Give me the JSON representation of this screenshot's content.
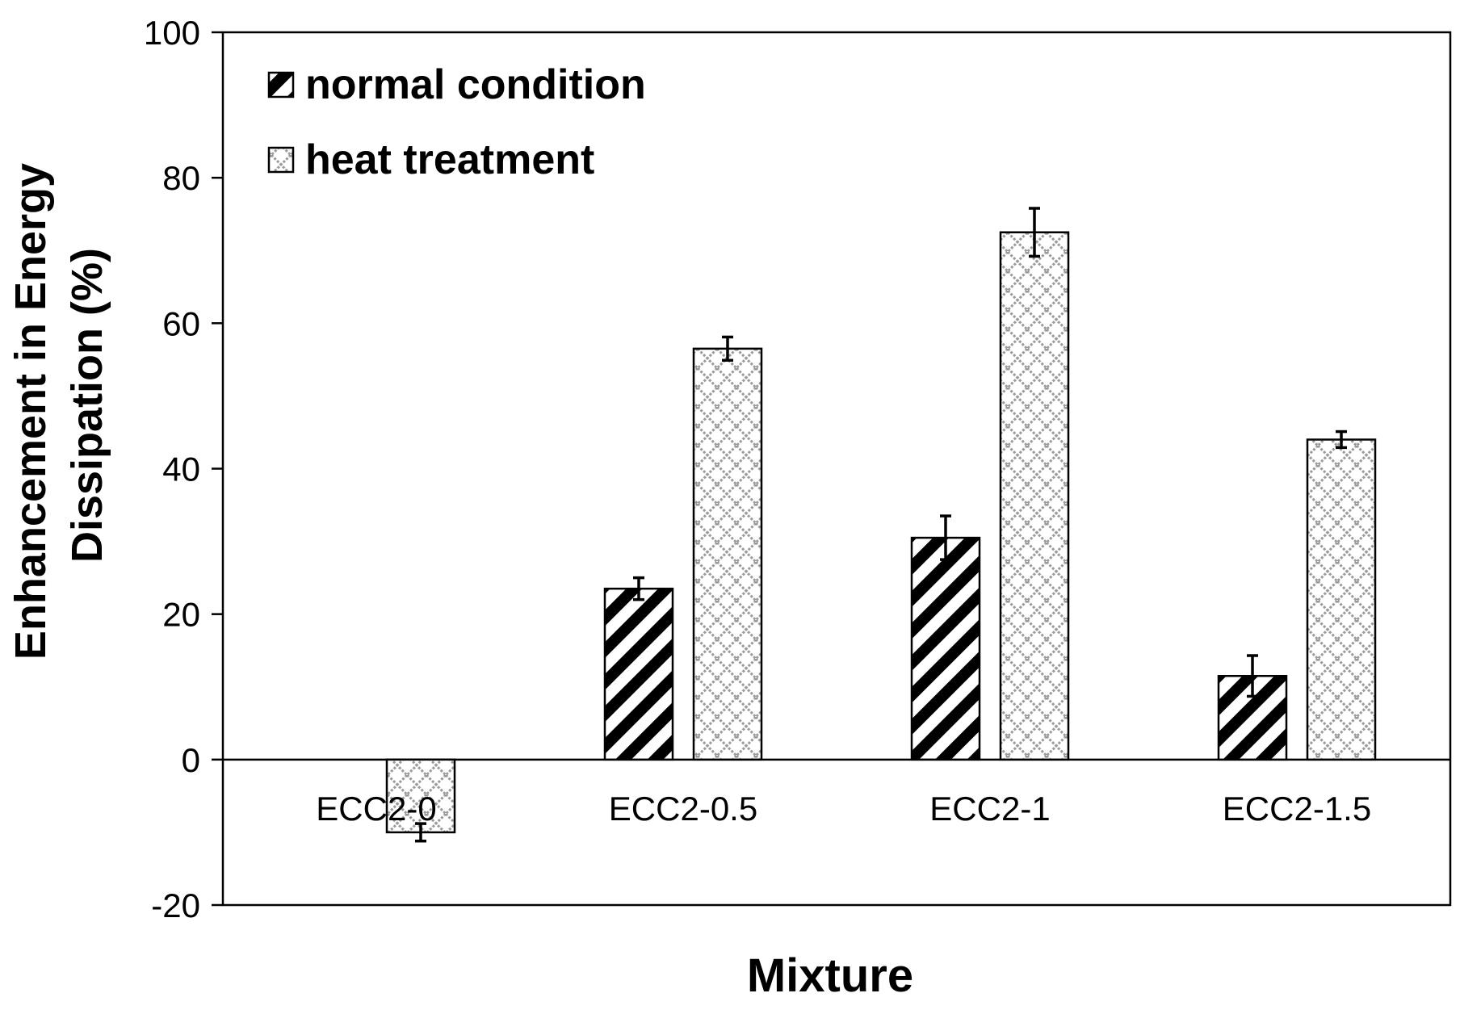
{
  "chart_data": {
    "type": "bar",
    "title": "",
    "xlabel": "Mixture",
    "ylabel_lines": [
      "Enhancement in Energy",
      "Dissipation (%)"
    ],
    "categories": [
      "ECC2-0",
      "ECC2-0.5",
      "ECC2-1",
      "ECC2-1.5"
    ],
    "ylim": [
      -20,
      100
    ],
    "yticks": [
      "-20",
      "0",
      "20",
      "40",
      "60",
      "80",
      "100"
    ],
    "ytick_values": [
      -20,
      0,
      20,
      40,
      60,
      80,
      100
    ],
    "legend_position": "top-left",
    "grid": false,
    "series": [
      {
        "name": "normal condition",
        "pattern": "diagonal-stripes",
        "values": [
          0,
          23.5,
          30.5,
          11.5
        ],
        "errors": [
          0,
          1.5,
          3.0,
          2.8
        ]
      },
      {
        "name": "heat treatment",
        "pattern": "crosshatch",
        "values": [
          -10,
          56.5,
          72.5,
          44
        ],
        "errors": [
          1.2,
          1.6,
          3.3,
          1.1
        ]
      }
    ]
  },
  "colors": {
    "axis": "#000000",
    "stripe_dark": "#000000",
    "stripe_light": "#ffffff",
    "hatch": "#9a9a9a",
    "background": "#ffffff"
  }
}
